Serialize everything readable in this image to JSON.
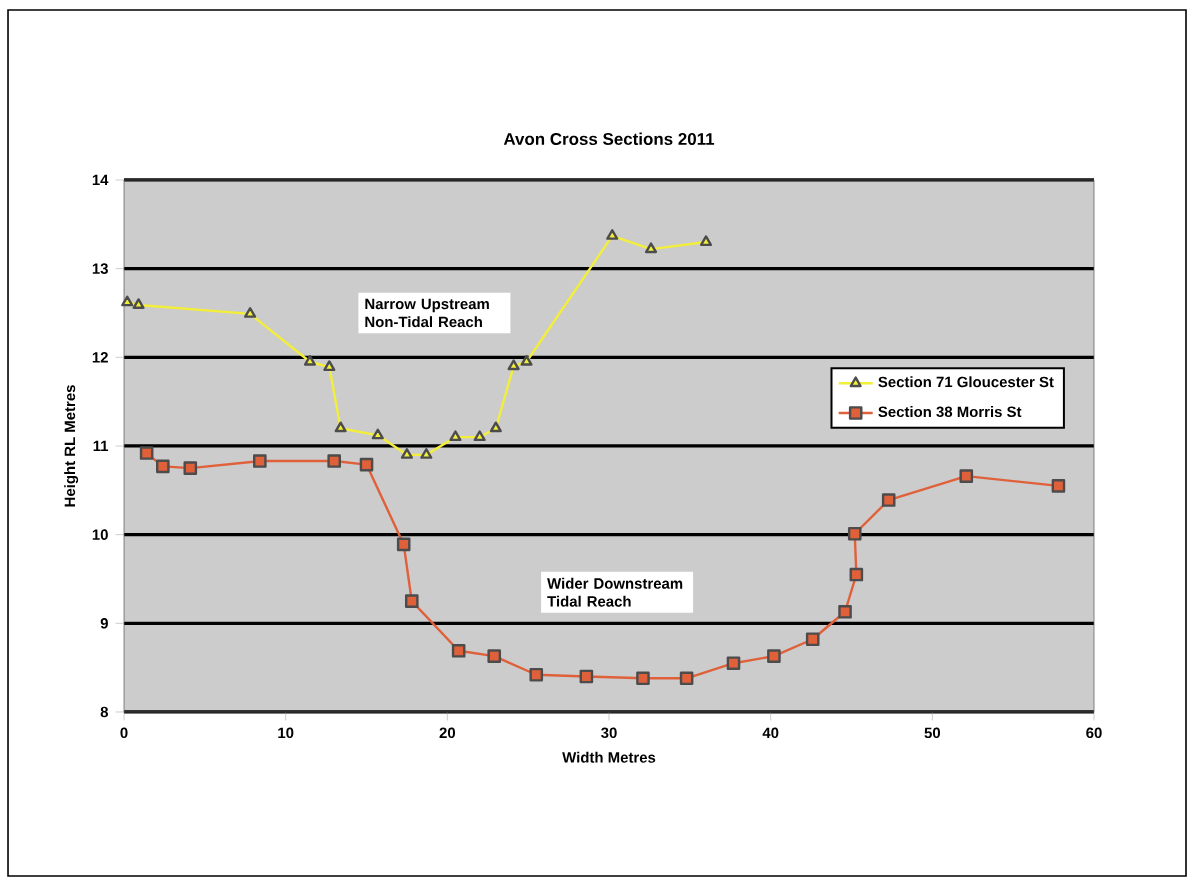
{
  "chart_data": {
    "type": "line",
    "title": "Avon Cross Sections 2011",
    "xlabel": "Width Metres",
    "ylabel": "Height RL Metres",
    "annotations": [
      "Narrow Upstream\nNon-Tidal Reach",
      "Wider Downstream\nTidal Reach"
    ],
    "xlim": [
      0,
      60
    ],
    "xticks": [
      0,
      10,
      20,
      30,
      40,
      50,
      60
    ],
    "ylim": [
      8,
      14
    ],
    "yticks": [
      8,
      9,
      10,
      11,
      12,
      13,
      14
    ],
    "grid": "y",
    "legend": "right",
    "series": [
      {
        "name": "Section 71 Gloucester St",
        "color": "#f2ee3a",
        "marker": "triangle",
        "x": [
          0.2,
          0.9,
          7.8,
          11.5,
          12.7,
          13.4,
          15.7,
          17.5,
          18.7,
          20.5,
          22.0,
          23.0,
          24.1,
          24.9,
          30.2,
          32.6,
          36.0
        ],
        "values": [
          12.62,
          12.59,
          12.49,
          11.95,
          11.89,
          11.2,
          11.12,
          10.9,
          10.9,
          11.1,
          11.1,
          11.2,
          11.9,
          11.95,
          13.37,
          13.22,
          13.3
        ]
      },
      {
        "name": "Section 38 Morris St",
        "color": "#e0603a",
        "marker": "square",
        "x": [
          1.4,
          2.4,
          4.1,
          8.4,
          13.0,
          15.0,
          17.3,
          17.8,
          20.7,
          22.9,
          25.5,
          28.6,
          32.1,
          34.8,
          37.7,
          40.2,
          42.6,
          44.6,
          45.3,
          45.2,
          47.3,
          52.1,
          57.8
        ],
        "values": [
          10.92,
          10.77,
          10.75,
          10.83,
          10.83,
          10.79,
          9.89,
          9.25,
          8.69,
          8.63,
          8.42,
          8.4,
          8.38,
          8.38,
          8.55,
          8.63,
          8.82,
          9.13,
          9.55,
          10.01,
          10.39,
          10.66,
          10.55
        ]
      }
    ]
  }
}
